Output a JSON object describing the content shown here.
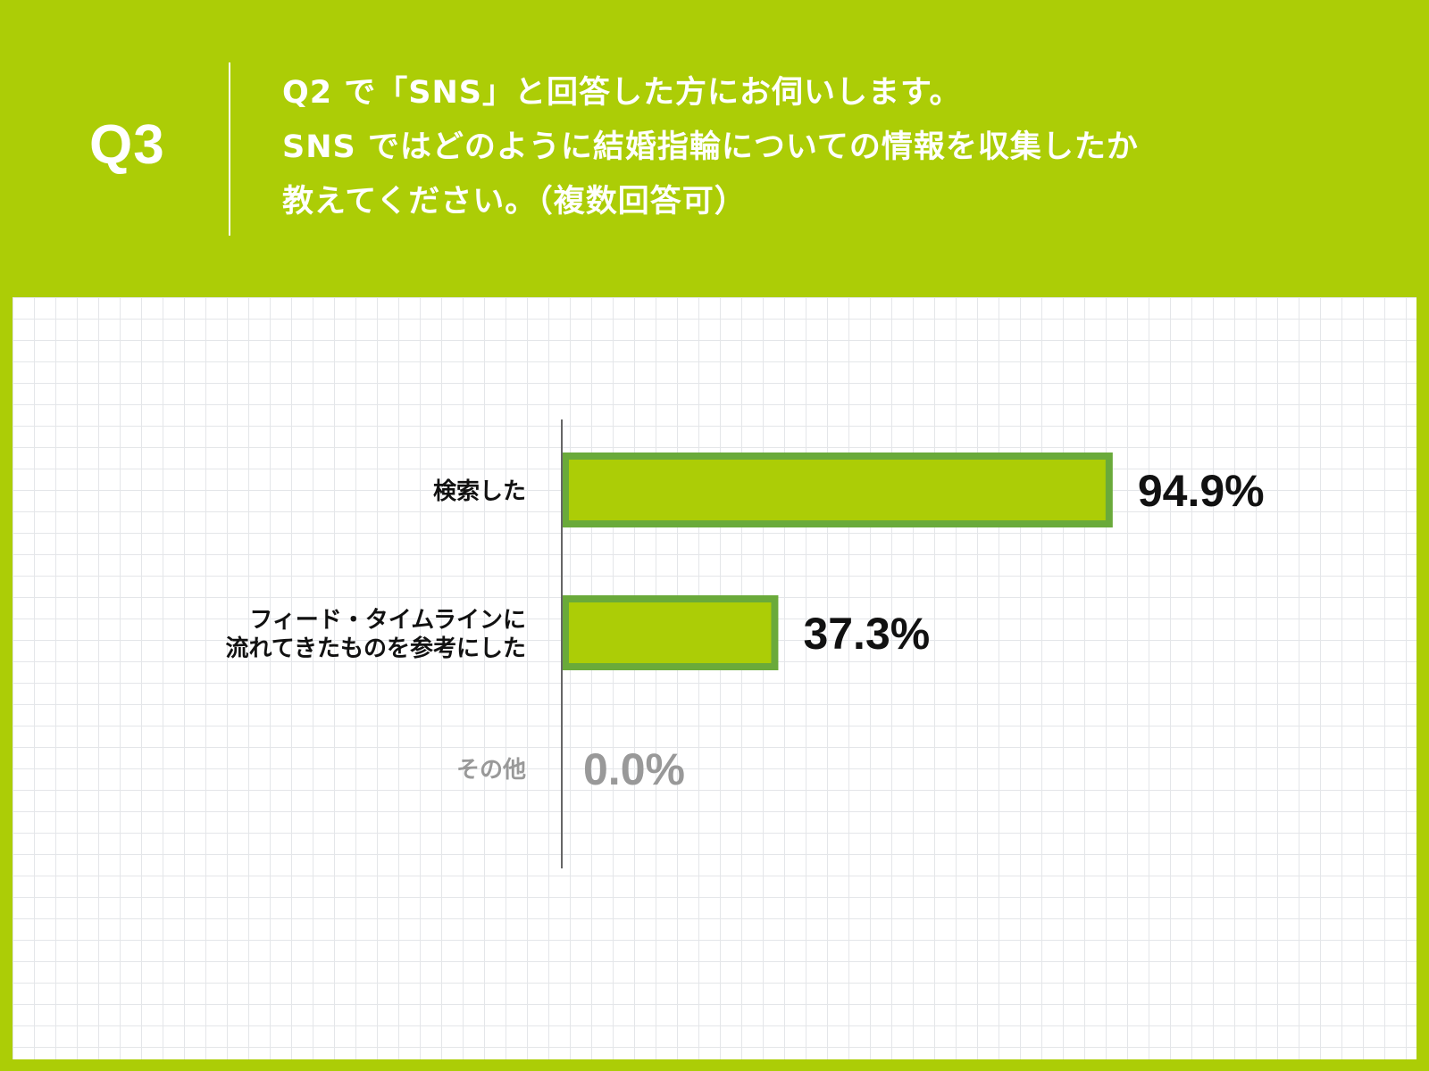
{
  "header": {
    "q_label": "Q3",
    "question_lines": [
      " Q2 で「SNS」と回答した方にお伺いします。",
      "SNS ではどのように結婚指輪についての情報を収集したか",
      "教えてください。（複数回答可）"
    ]
  },
  "colors": {
    "background": "#accd06",
    "bar_fill": "#accd06",
    "bar_border": "#6aaa3a",
    "label_dark": "#111111",
    "label_muted": "#999999"
  },
  "chart_data": {
    "type": "bar",
    "orientation": "horizontal",
    "categories": [
      [
        "検索した"
      ],
      [
        "フィード・タイムラインに",
        "流れてきたものを参考にした"
      ],
      [
        "その他"
      ]
    ],
    "values": [
      94.9,
      37.3,
      0.0
    ],
    "value_labels": [
      "94.9%",
      "37.3%",
      "0.0%"
    ],
    "unit": "%",
    "xlim": [
      0,
      100
    ],
    "grid": true
  }
}
